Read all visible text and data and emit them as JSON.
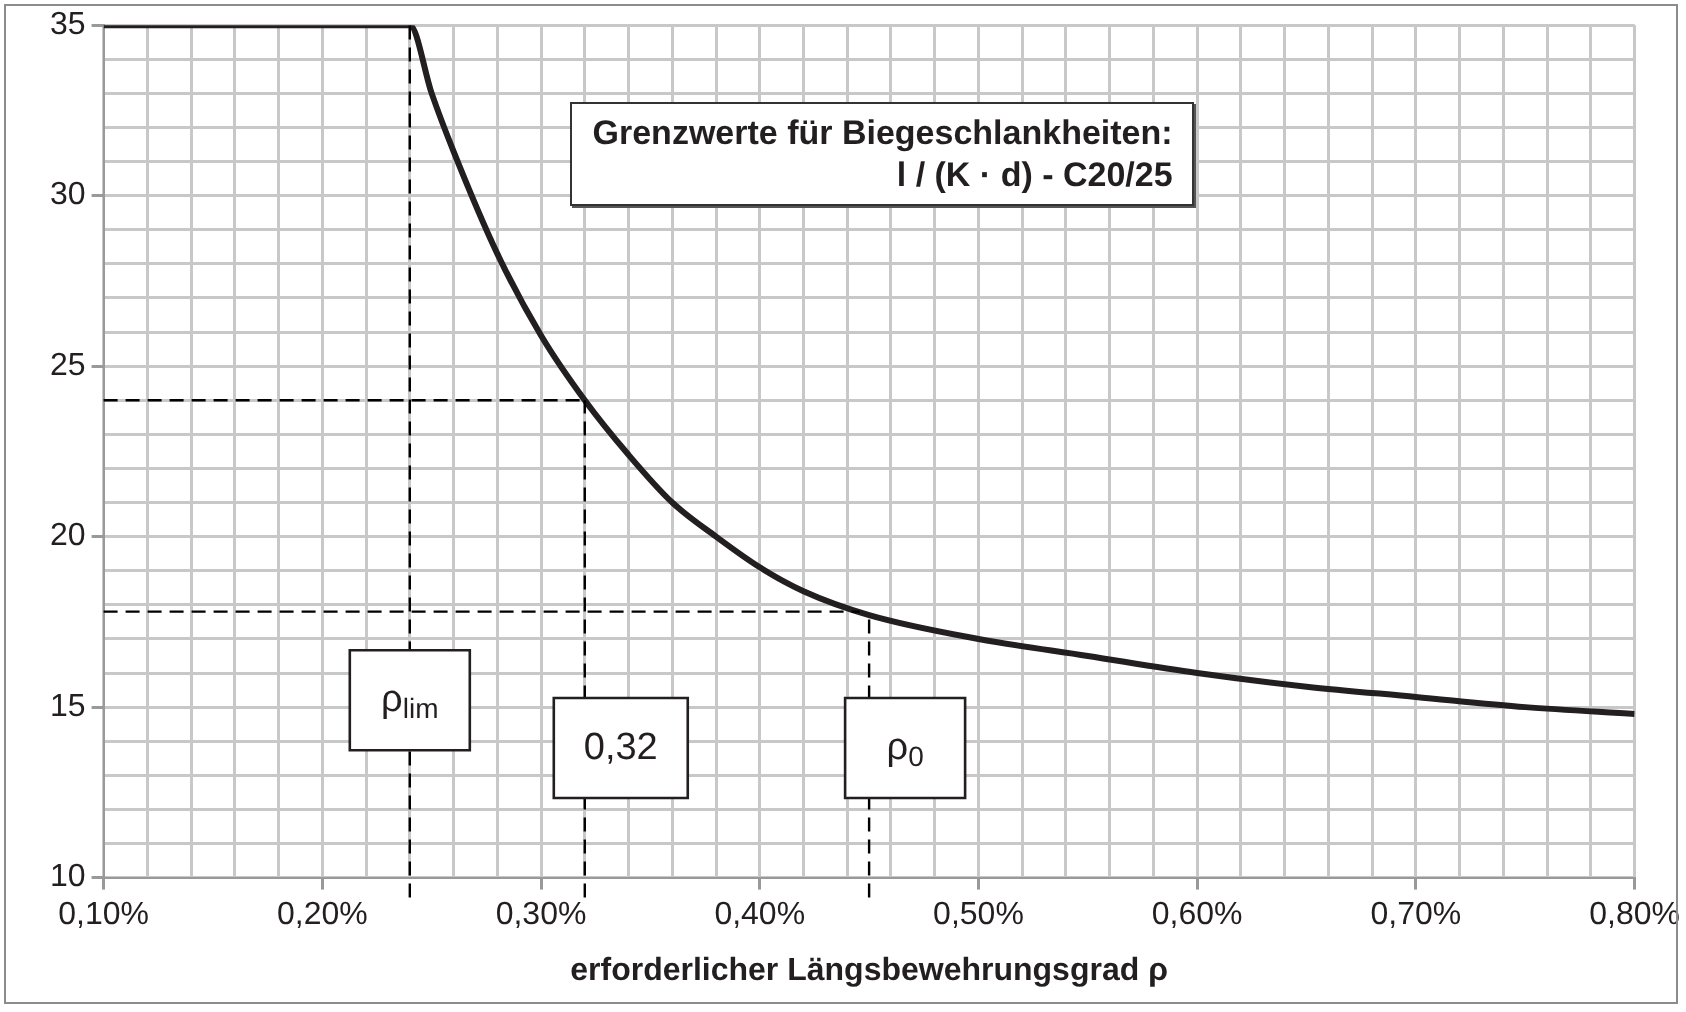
{
  "chart_data": {
    "type": "line",
    "title": "Grenzwerte für Biegeschlankheiten:",
    "subtitle": "l / (K · d) - C20/25",
    "xlabel": "erforderlicher Längsbewehrungsgrad ρ",
    "series": [
      {
        "color": "#231f20",
        "x": [
          0.1,
          0.15,
          0.2,
          0.24,
          0.25,
          0.26,
          0.28,
          0.3,
          0.32,
          0.34,
          0.36,
          0.38,
          0.4,
          0.42,
          0.45,
          0.5,
          0.55,
          0.6,
          0.65,
          0.7,
          0.75,
          0.8
        ],
        "values": [
          35,
          35,
          35,
          35,
          33.0,
          31.3,
          28.3,
          25.9,
          24.0,
          22.4,
          21.0,
          20.0,
          19.1,
          18.4,
          17.7,
          17.0,
          16.5,
          16.0,
          15.6,
          15.3,
          15.0,
          14.8
        ]
      }
    ],
    "xlim": [
      0.1,
      0.8
    ],
    "xticks": [
      {
        "value": 0.1,
        "label": "0,10%"
      },
      {
        "value": 0.12,
        "label": null
      },
      {
        "value": 0.14,
        "label": null
      },
      {
        "value": 0.16,
        "label": null
      },
      {
        "value": 0.18,
        "label": null
      },
      {
        "value": 0.2,
        "label": "0,20%"
      },
      {
        "value": 0.22,
        "label": null
      },
      {
        "value": 0.24,
        "label": null
      },
      {
        "value": 0.26,
        "label": null
      },
      {
        "value": 0.28,
        "label": null
      },
      {
        "value": 0.3,
        "label": "0,30%"
      },
      {
        "value": 0.32,
        "label": null
      },
      {
        "value": 0.34,
        "label": null
      },
      {
        "value": 0.36,
        "label": null
      },
      {
        "value": 0.38,
        "label": null
      },
      {
        "value": 0.4,
        "label": "0,40%"
      },
      {
        "value": 0.42,
        "label": null
      },
      {
        "value": 0.44,
        "label": null
      },
      {
        "value": 0.46,
        "label": null
      },
      {
        "value": 0.48,
        "label": null
      },
      {
        "value": 0.5,
        "label": "0,50%"
      },
      {
        "value": 0.52,
        "label": null
      },
      {
        "value": 0.54,
        "label": null
      },
      {
        "value": 0.56,
        "label": null
      },
      {
        "value": 0.58,
        "label": null
      },
      {
        "value": 0.6,
        "label": "0,60%"
      },
      {
        "value": 0.62,
        "label": null
      },
      {
        "value": 0.64,
        "label": null
      },
      {
        "value": 0.66,
        "label": null
      },
      {
        "value": 0.68,
        "label": null
      },
      {
        "value": 0.7,
        "label": "0,70%"
      },
      {
        "value": 0.72,
        "label": null
      },
      {
        "value": 0.74,
        "label": null
      },
      {
        "value": 0.76,
        "label": null
      },
      {
        "value": 0.78,
        "label": null
      },
      {
        "value": 0.8,
        "label": "0,80%"
      }
    ],
    "ylim": [
      10,
      35
    ],
    "yticks": [
      10,
      {
        "value": 11,
        "label": null
      },
      {
        "value": 12,
        "label": null
      },
      {
        "value": 13,
        "label": null
      },
      {
        "value": 14,
        "label": null
      },
      15,
      {
        "value": 16,
        "label": null
      },
      {
        "value": 17,
        "label": null
      },
      {
        "value": 18,
        "label": null
      },
      {
        "value": 19,
        "label": null
      },
      20,
      {
        "value": 21,
        "label": null
      },
      {
        "value": 22,
        "label": null
      },
      {
        "value": 23,
        "label": null
      },
      {
        "value": 24,
        "label": null
      },
      25,
      {
        "value": 26,
        "label": null
      },
      {
        "value": 27,
        "label": null
      },
      {
        "value": 28,
        "label": null
      },
      {
        "value": 29,
        "label": null
      },
      30,
      {
        "value": 31,
        "label": null
      },
      {
        "value": 32,
        "label": null
      },
      {
        "value": 33,
        "label": null
      },
      {
        "value": 34,
        "label": null
      },
      35
    ],
    "ref_lines": [
      {
        "axis": "x",
        "value": 0.24,
        "label": "ρ$_{lim}$",
        "color": "#000000",
        "line_style": "dashed"
      },
      {
        "axis": "x",
        "value": 0.32,
        "label": "0,32",
        "color": "#000000",
        "line_style": "dashed"
      },
      {
        "axis": "x",
        "value": 0.45,
        "label": "ρ$_{0}$",
        "color": "#000000",
        "line_style": "dashed"
      },
      {
        "axis": "y",
        "value": 24,
        "color": "#000000",
        "line_style": "dashed"
      },
      {
        "axis": "y",
        "value": 17.8,
        "color": "#000000",
        "line_style": "dashed"
      }
    ],
    "grid": true,
    "legend": false,
    "marker": "none",
    "line_style": "solid"
  }
}
